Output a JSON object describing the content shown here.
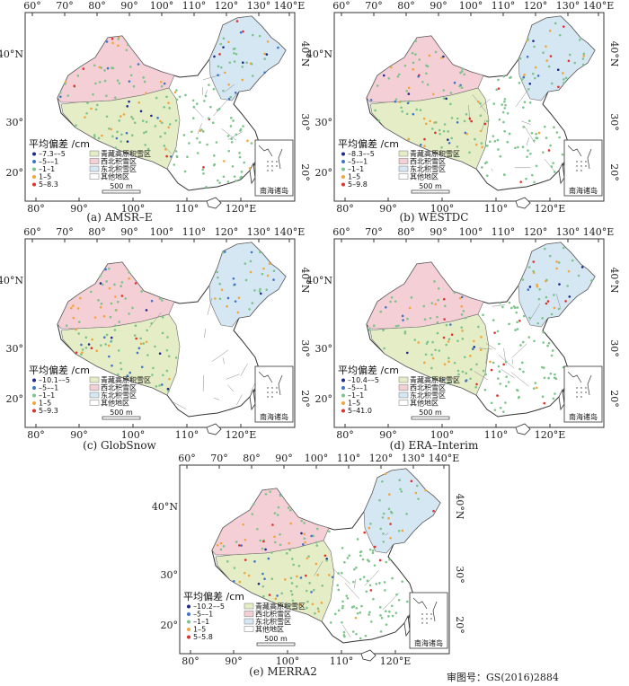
{
  "figure": {
    "lon_ticks": [
      "60°",
      "70°",
      "80°",
      "90°",
      "100°",
      "110°",
      "120°",
      "130°",
      "140°E"
    ],
    "lon_ticks_bottom": [
      "80°",
      "90°",
      "100°",
      "110°",
      "120°E"
    ],
    "lat_ticks": [
      "20°",
      "30°",
      "40°N"
    ],
    "legend_title": "平均偏差 /cm",
    "regions": [
      "青藏高原积雪区",
      "西北积雪区",
      "东北积雪区",
      "其他地区"
    ],
    "region_colors": [
      "#e5edc6",
      "#f4cfd6",
      "#d6e7f4",
      "#ffffff"
    ],
    "class_colors": [
      "#1c2a8a",
      "#3f74c9",
      "#7cc48b",
      "#f2a53a",
      "#e0312b"
    ],
    "scale_label": "500 m",
    "inset_label": "南海诸岛",
    "approval": "审图号：GS(2016)2884"
  },
  "panels": [
    {
      "caption": "(a)  AMSR–E",
      "bias_classes": [
        "–7.3––5",
        "–5––1",
        "–1–1",
        "1–5",
        "5–8.3"
      ],
      "other_colored": true
    },
    {
      "caption": "(b) WESTDC",
      "bias_classes": [
        "–8.3––5",
        "–5––1",
        "–1–1",
        "1–5",
        "5–9.8"
      ],
      "other_colored": true
    },
    {
      "caption": "(c) GlobSnow",
      "bias_classes": [
        "–10.1––5",
        "–5––1",
        "–1–1",
        "1–5",
        "5–9.3"
      ],
      "other_colored": false
    },
    {
      "caption": "(d) ERA–Interim",
      "bias_classes": [
        "–10.4––5",
        "–5––1",
        "–1–1",
        "1–5",
        "5–41.0"
      ],
      "other_colored": true
    },
    {
      "caption": "(e) MERRA2",
      "bias_classes": [
        "–10.2––5",
        "–5––1",
        "–1–1",
        "1–5",
        "5–5.8"
      ],
      "other_colored": true
    }
  ]
}
